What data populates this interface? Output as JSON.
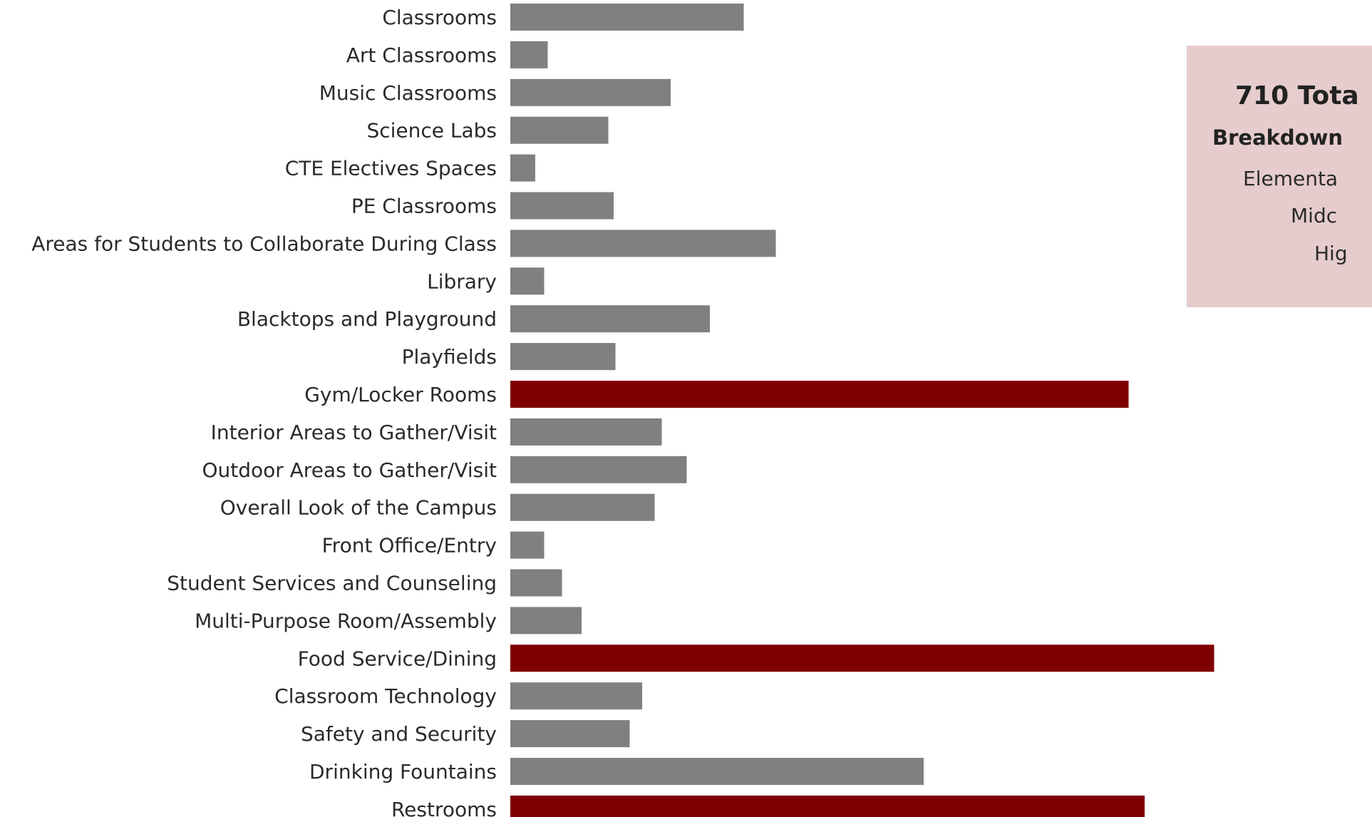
{
  "chart_data": {
    "type": "bar",
    "orientation": "horizontal",
    "categories": [
      "Classrooms",
      "Art Classrooms",
      "Music Classrooms",
      "Science Labs",
      "CTE Electives Spaces",
      "PE Classrooms",
      "Areas for Students to Collaborate During Class",
      "Library",
      "Blacktops and Playground",
      "Playfields",
      "Gym/Locker Rooms",
      "Interior Areas to Gather/Visit",
      "Outdoor Areas to Gather/Visit",
      "Overall Look of the Campus",
      "Front Office/Entry",
      "Student Services and Counseling",
      "Multi-Purpose Room/Assembly",
      "Food Service/Dining",
      "Classroom Technology",
      "Safety and Security",
      "Drinking Fountains",
      "Restrooms"
    ],
    "values": [
      131,
      21,
      90,
      55,
      14,
      58,
      149,
      19,
      112,
      59,
      347,
      85,
      99,
      81,
      19,
      29,
      40,
      395,
      74,
      67,
      232,
      356
    ],
    "highlight": [
      false,
      false,
      false,
      false,
      false,
      false,
      false,
      false,
      false,
      false,
      true,
      false,
      false,
      false,
      false,
      false,
      false,
      true,
      false,
      false,
      false,
      true
    ],
    "title": "",
    "xlabel": "",
    "ylabel": "",
    "xlim": [
      0,
      390
    ],
    "grid": false,
    "colors": {
      "default": "#808080",
      "highlight": "#7f0000"
    }
  },
  "summary_box": {
    "title": "710 Tota",
    "subtitle": "Breakdown",
    "rows": [
      "Elementa",
      "Midc",
      "Hig"
    ],
    "background": "#e6cccd"
  }
}
